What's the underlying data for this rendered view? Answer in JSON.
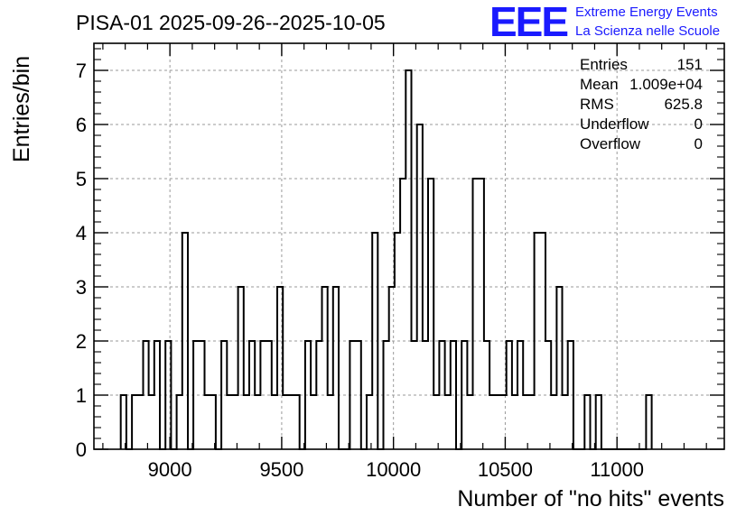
{
  "chart_data": {
    "type": "histogram",
    "title": "PISA-01 2025-09-26--2025-10-05",
    "xlabel": "Number of \"no hits\" events",
    "ylabel": "Entries/bin",
    "xlim": [
      8660,
      11480
    ],
    "ylim": [
      0,
      7.5
    ],
    "bin_width": 25,
    "x_start": 8780,
    "counts": [
      1,
      0,
      1,
      1,
      2,
      1,
      2,
      0,
      2,
      0,
      1,
      4,
      0,
      2,
      2,
      1,
      1,
      0,
      2,
      1,
      1,
      3,
      1,
      2,
      1,
      2,
      2,
      1,
      3,
      1,
      1,
      1,
      0,
      2,
      1,
      2,
      3,
      1,
      3,
      0,
      0,
      2,
      2,
      0,
      1,
      4,
      0,
      2,
      3,
      4,
      5,
      7,
      2,
      6,
      2,
      5,
      1,
      2,
      1,
      2,
      0,
      2,
      1,
      5,
      5,
      2,
      1,
      1,
      1,
      2,
      1,
      2,
      1,
      1,
      4,
      4,
      2,
      1,
      3,
      1,
      2,
      0,
      0,
      1,
      0,
      1,
      0,
      0,
      0,
      0,
      0,
      0,
      0,
      0,
      1
    ],
    "xticks": [
      9000,
      9500,
      10000,
      10500,
      11000
    ],
    "xtick_labels": [
      "9000",
      "9500",
      "10000",
      "10500",
      "11000"
    ],
    "yticks": [
      0,
      1,
      2,
      3,
      4,
      5,
      6,
      7
    ],
    "ytick_labels": [
      "0",
      "1",
      "2",
      "3",
      "4",
      "5",
      "6",
      "7"
    ],
    "grid": true,
    "stats": [
      {
        "label": "Entries",
        "value": "151"
      },
      {
        "label": "Mean",
        "value": "1.009e+04"
      },
      {
        "label": "RMS",
        "value": "625.8"
      },
      {
        "label": "Underflow",
        "value": "0"
      },
      {
        "label": "Overflow",
        "value": "0"
      }
    ]
  },
  "logo": {
    "mark": "EEE",
    "line1": "Extreme Energy Events",
    "line2": "La Scienza nelle Scuole",
    "color": "#1a1aff"
  }
}
